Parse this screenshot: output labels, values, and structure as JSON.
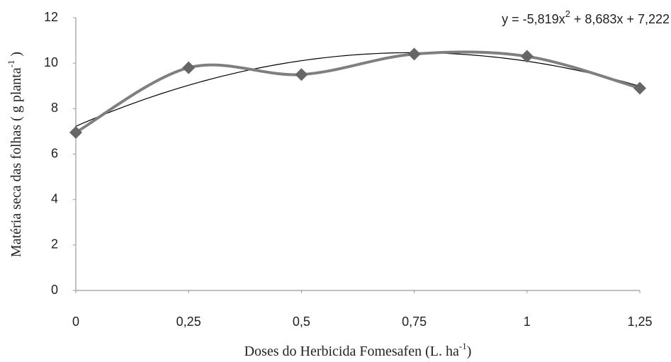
{
  "chart_data": {
    "type": "line",
    "x": [
      0,
      0.25,
      0.5,
      0.75,
      1,
      1.25
    ],
    "series": [
      {
        "color": "#7f7f7f",
        "marker_color": "#666666",
        "values": [
          6.95,
          9.8,
          9.5,
          10.4,
          10.3,
          8.9
        ]
      }
    ],
    "xlim": [
      0,
      1.25
    ],
    "xticks": [
      0,
      {
        "value": 0.25,
        "label": "0,25"
      },
      {
        "value": 0.5,
        "label": "0,5"
      },
      {
        "value": 0.75,
        "label": "0,75"
      },
      1,
      {
        "value": 1.25,
        "label": "1,25"
      }
    ],
    "ylim": [
      0,
      12
    ],
    "yticks": [
      0,
      2,
      4,
      6,
      8,
      10,
      12
    ],
    "xlabel": [
      "Doses do Herbicida Fomesafen (L. ha",
      "-1",
      ")"
    ],
    "ylabel": [
      "Matéria seca das folhas ( g planta",
      "-1",
      " )"
    ],
    "trendline": {
      "equation": [
        "y = -5,819x",
        "2",
        " + 8,683x + 7,222"
      ],
      "coefficients": [
        -5.819,
        8.683,
        7.222
      ],
      "color": "#000000"
    },
    "grid": false
  }
}
